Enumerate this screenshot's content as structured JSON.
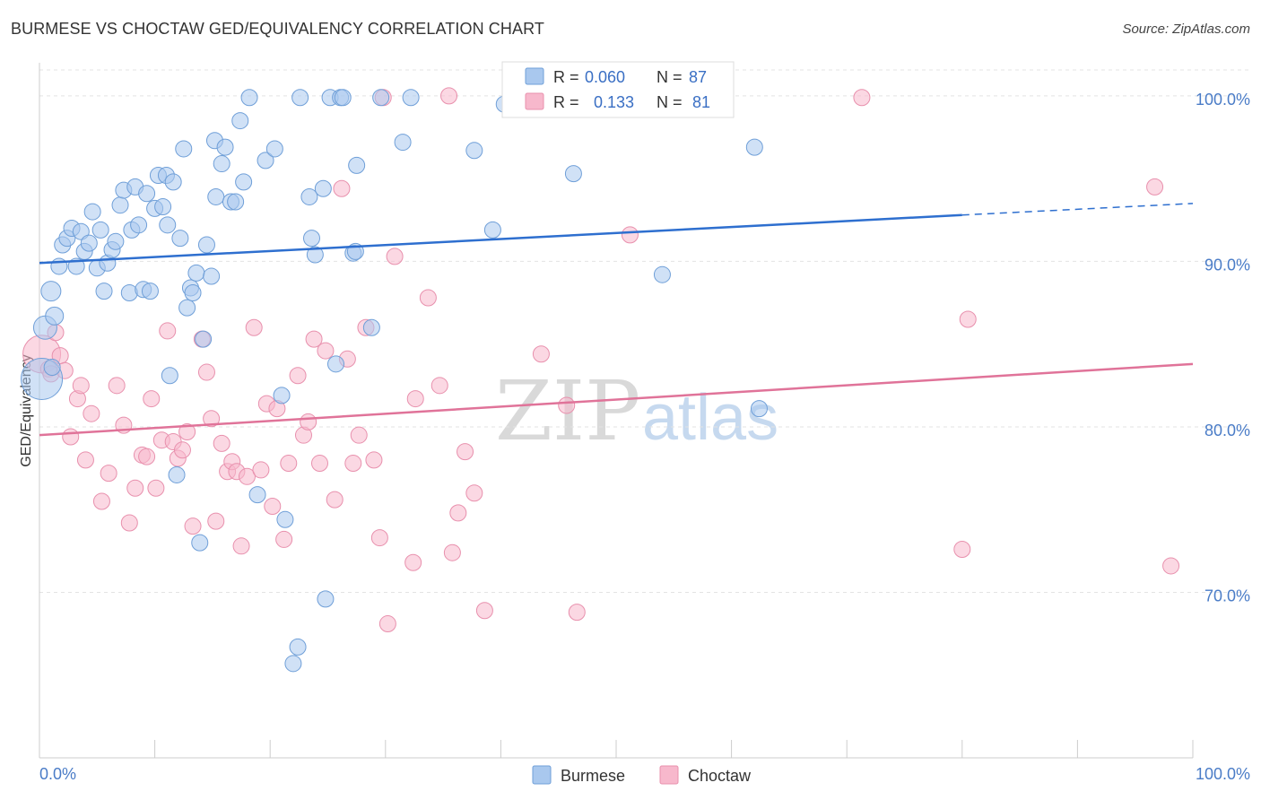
{
  "header": {
    "title": "BURMESE VS CHOCTAW GED/EQUIVALENCY CORRELATION CHART",
    "source": "Source: ZipAtlas.com"
  },
  "watermark": {
    "zip": "ZIP",
    "atlas": "atlas"
  },
  "colors": {
    "burmese_fill": "#a9c8ee",
    "burmese_stroke": "#6f9fd8",
    "burmese_line": "#2e6fcf",
    "choctaw_fill": "#f7b8cc",
    "choctaw_stroke": "#e890ad",
    "choctaw_line": "#e07399",
    "grid": "#e3e3e3",
    "axis_label": "#4a7cc7"
  },
  "legend_top": {
    "burmese": {
      "r_label": "R =",
      "r_value": "0.060",
      "n_label": "N =",
      "n_value": "87"
    },
    "choctaw": {
      "r_label": "R =",
      "r_value": "0.133",
      "n_label": "N =",
      "n_value": "81"
    }
  },
  "legend_bottom": {
    "burmese": "Burmese",
    "choctaw": "Choctaw"
  },
  "chart_data": {
    "type": "scatter",
    "title": "BURMESE VS CHOCTAW GED/EQUIVALENCY CORRELATION CHART",
    "xlabel": "",
    "ylabel": "GED/Equivalency",
    "xlim": [
      0,
      100
    ],
    "ylim": [
      60,
      102
    ],
    "x_tick_labels": [
      "0.0%",
      "100.0%"
    ],
    "y_ticks": [
      {
        "value": 100,
        "label": "100.0%"
      },
      {
        "value": 90,
        "label": "90.0%"
      },
      {
        "value": 80,
        "label": "80.0%"
      },
      {
        "value": 70,
        "label": "70.0%"
      }
    ],
    "grid": true,
    "series": [
      {
        "name": "Burmese",
        "R": 0.06,
        "N": 87,
        "trend": {
          "x_start": 0,
          "y_start": 89.9,
          "x_solid_end": 80,
          "y_solid_end": 92.8,
          "x_end": 100,
          "y_end": 93.5
        },
        "points": [
          [
            0.2,
            82.9,
            22
          ],
          [
            0.5,
            86.0,
            12
          ],
          [
            1.0,
            88.2,
            10
          ],
          [
            1.3,
            86.7,
            9
          ],
          [
            1.7,
            89.7,
            8
          ],
          [
            1.1,
            83.6,
            8
          ],
          [
            2.0,
            91.0,
            8
          ],
          [
            2.4,
            91.4,
            8
          ],
          [
            2.8,
            92.0,
            8
          ],
          [
            3.2,
            89.7,
            8
          ],
          [
            3.6,
            91.8,
            8
          ],
          [
            3.9,
            90.6,
            8
          ],
          [
            4.3,
            91.1,
            8
          ],
          [
            4.6,
            93.0,
            8
          ],
          [
            5.0,
            89.6,
            8
          ],
          [
            5.3,
            91.9,
            8
          ],
          [
            5.6,
            88.2,
            8
          ],
          [
            5.9,
            89.9,
            8
          ],
          [
            6.3,
            90.7,
            8
          ],
          [
            6.6,
            91.2,
            8
          ],
          [
            7.0,
            93.4,
            8
          ],
          [
            7.3,
            94.3,
            8
          ],
          [
            7.8,
            88.1,
            8
          ],
          [
            8.0,
            91.9,
            8
          ],
          [
            8.3,
            94.5,
            8
          ],
          [
            8.6,
            92.2,
            8
          ],
          [
            9.0,
            88.3,
            8
          ],
          [
            9.3,
            94.1,
            8
          ],
          [
            9.6,
            88.2,
            8
          ],
          [
            10.0,
            93.2,
            8
          ],
          [
            10.3,
            95.2,
            8
          ],
          [
            10.7,
            93.3,
            8
          ],
          [
            11.0,
            95.2,
            8
          ],
          [
            11.1,
            92.2,
            8
          ],
          [
            11.3,
            83.1,
            8
          ],
          [
            11.6,
            94.8,
            8
          ],
          [
            11.9,
            77.1,
            8
          ],
          [
            12.2,
            91.4,
            8
          ],
          [
            12.5,
            96.8,
            8
          ],
          [
            12.8,
            87.2,
            8
          ],
          [
            13.1,
            88.4,
            8
          ],
          [
            13.3,
            88.1,
            8
          ],
          [
            13.6,
            89.3,
            8
          ],
          [
            13.9,
            73.0,
            8
          ],
          [
            14.2,
            85.3,
            8
          ],
          [
            14.5,
            91.0,
            8
          ],
          [
            14.9,
            89.1,
            8
          ],
          [
            15.2,
            97.3,
            8
          ],
          [
            15.3,
            93.9,
            8
          ],
          [
            15.8,
            95.9,
            8
          ],
          [
            16.1,
            96.9,
            8
          ],
          [
            16.6,
            93.6,
            8
          ],
          [
            17.0,
            93.6,
            8
          ],
          [
            17.4,
            98.5,
            8
          ],
          [
            17.7,
            94.8,
            8
          ],
          [
            18.2,
            99.9,
            8
          ],
          [
            18.9,
            75.9,
            8
          ],
          [
            19.6,
            96.1,
            8
          ],
          [
            20.4,
            96.8,
            8
          ],
          [
            21.0,
            81.9,
            8
          ],
          [
            21.3,
            74.4,
            8
          ],
          [
            22.0,
            65.7,
            8
          ],
          [
            22.4,
            66.7,
            8
          ],
          [
            22.6,
            99.9,
            8
          ],
          [
            23.4,
            93.9,
            8
          ],
          [
            23.6,
            91.4,
            8
          ],
          [
            23.9,
            90.4,
            8
          ],
          [
            24.6,
            94.4,
            8
          ],
          [
            24.8,
            69.6,
            8
          ],
          [
            25.2,
            99.9,
            8
          ],
          [
            25.7,
            83.8,
            8
          ],
          [
            26.1,
            99.9,
            8
          ],
          [
            26.3,
            99.9,
            8
          ],
          [
            27.2,
            90.5,
            8
          ],
          [
            27.4,
            90.6,
            8
          ],
          [
            27.5,
            95.8,
            8
          ],
          [
            28.8,
            86.0,
            8
          ],
          [
            29.6,
            99.9,
            8
          ],
          [
            31.5,
            97.2,
            8
          ],
          [
            32.2,
            99.9,
            8
          ],
          [
            37.7,
            96.7,
            8
          ],
          [
            39.3,
            91.9,
            8
          ],
          [
            40.3,
            99.5,
            8
          ],
          [
            46.3,
            95.3,
            8
          ],
          [
            54.0,
            89.2,
            8
          ],
          [
            62.4,
            81.1,
            8
          ],
          [
            62.0,
            96.9,
            8
          ]
        ]
      },
      {
        "name": "Choctaw",
        "R": 0.133,
        "N": 81,
        "trend": {
          "x_start": 0,
          "y_start": 79.5,
          "x_end": 100,
          "y_end": 83.8
        },
        "points": [
          [
            0.2,
            84.4,
            20
          ],
          [
            0.8,
            83.5,
            8
          ],
          [
            1.0,
            83.2,
            8
          ],
          [
            1.4,
            85.7,
            8
          ],
          [
            1.8,
            84.3,
            8
          ],
          [
            2.2,
            83.4,
            8
          ],
          [
            2.7,
            79.4,
            8
          ],
          [
            3.3,
            81.7,
            8
          ],
          [
            3.6,
            82.5,
            8
          ],
          [
            4.0,
            78.0,
            8
          ],
          [
            4.5,
            80.8,
            8
          ],
          [
            5.4,
            75.5,
            8
          ],
          [
            6.0,
            77.2,
            8
          ],
          [
            6.7,
            82.5,
            8
          ],
          [
            7.3,
            80.1,
            8
          ],
          [
            7.8,
            74.2,
            8
          ],
          [
            8.3,
            76.3,
            8
          ],
          [
            8.9,
            78.3,
            8
          ],
          [
            9.3,
            78.2,
            8
          ],
          [
            9.7,
            81.7,
            8
          ],
          [
            10.1,
            76.3,
            8
          ],
          [
            10.6,
            79.2,
            8
          ],
          [
            11.1,
            85.8,
            8
          ],
          [
            11.6,
            79.1,
            8
          ],
          [
            12.0,
            78.1,
            8
          ],
          [
            12.4,
            78.6,
            8
          ],
          [
            12.8,
            79.7,
            8
          ],
          [
            13.3,
            74.0,
            8
          ],
          [
            14.1,
            85.3,
            8
          ],
          [
            14.5,
            83.3,
            8
          ],
          [
            14.9,
            80.5,
            8
          ],
          [
            15.3,
            74.3,
            8
          ],
          [
            15.8,
            79.0,
            8
          ],
          [
            16.3,
            77.3,
            8
          ],
          [
            16.7,
            77.9,
            8
          ],
          [
            17.1,
            77.3,
            8
          ],
          [
            17.5,
            72.8,
            8
          ],
          [
            18.0,
            77.0,
            8
          ],
          [
            18.6,
            86.0,
            8
          ],
          [
            19.2,
            77.4,
            8
          ],
          [
            19.7,
            81.4,
            8
          ],
          [
            20.2,
            75.2,
            8
          ],
          [
            20.6,
            81.1,
            8
          ],
          [
            21.2,
            73.2,
            8
          ],
          [
            21.6,
            77.8,
            8
          ],
          [
            22.4,
            83.1,
            8
          ],
          [
            22.9,
            79.5,
            8
          ],
          [
            23.3,
            80.3,
            8
          ],
          [
            23.8,
            85.3,
            8
          ],
          [
            24.3,
            77.8,
            8
          ],
          [
            24.8,
            84.6,
            8
          ],
          [
            25.6,
            75.6,
            8
          ],
          [
            26.2,
            94.4,
            8
          ],
          [
            26.7,
            84.1,
            8
          ],
          [
            27.2,
            77.8,
            8
          ],
          [
            27.7,
            79.5,
            8
          ],
          [
            28.3,
            86.0,
            8
          ],
          [
            29.0,
            78.0,
            8
          ],
          [
            29.5,
            73.3,
            8
          ],
          [
            29.8,
            99.9,
            8
          ],
          [
            30.2,
            68.1,
            8
          ],
          [
            30.8,
            90.3,
            8
          ],
          [
            32.4,
            71.8,
            8
          ],
          [
            32.6,
            81.7,
            8
          ],
          [
            33.7,
            87.8,
            8
          ],
          [
            34.7,
            82.5,
            8
          ],
          [
            35.5,
            100.0,
            8
          ],
          [
            35.8,
            72.4,
            8
          ],
          [
            36.3,
            74.8,
            8
          ],
          [
            36.9,
            78.5,
            8
          ],
          [
            37.7,
            76.0,
            8
          ],
          [
            38.6,
            68.9,
            8
          ],
          [
            43.5,
            84.4,
            8
          ],
          [
            45.7,
            81.3,
            8
          ],
          [
            46.6,
            68.8,
            8
          ],
          [
            51.2,
            91.6,
            8
          ],
          [
            71.3,
            99.9,
            8
          ],
          [
            80.0,
            72.6,
            8
          ],
          [
            80.5,
            86.5,
            8
          ],
          [
            96.7,
            94.5,
            8
          ],
          [
            98.1,
            71.6,
            8
          ]
        ]
      }
    ]
  }
}
